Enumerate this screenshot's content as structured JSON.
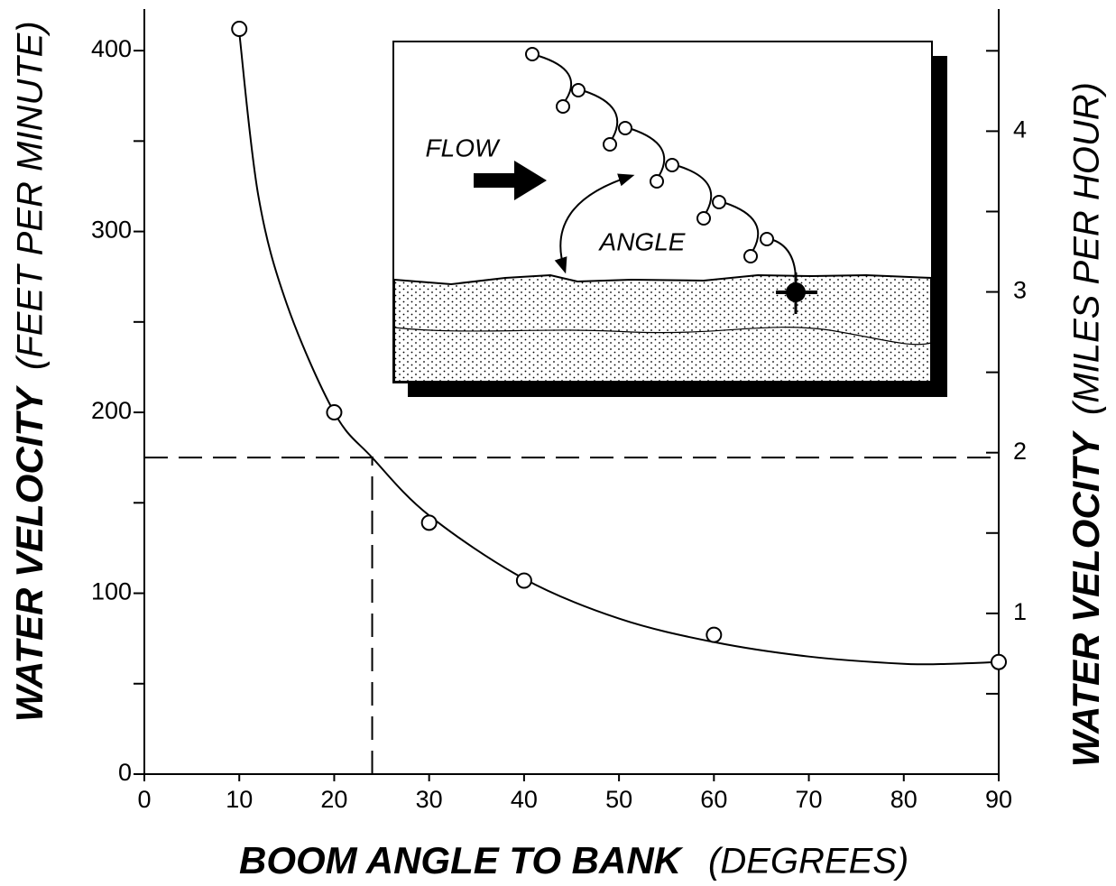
{
  "chart_data": {
    "type": "scatter",
    "x_label": "BOOM ANGLE TO BANK",
    "x_label_units": "(DEGREES)",
    "y_label": "WATER VELOCITY",
    "y_label_units": "(FEET PER MINUTE)",
    "y2_label": "WATER VELOCITY",
    "y2_label_units": "(MILES PER HOUR)",
    "x": [
      10,
      20,
      30,
      40,
      60,
      90
    ],
    "values": [
      412,
      200,
      139,
      107,
      77,
      62
    ],
    "curve": {
      "x": [
        10,
        12,
        15,
        20,
        24,
        30,
        40,
        50,
        60,
        70,
        80,
        85,
        90
      ],
      "values": [
        410,
        320,
        260,
        200,
        175,
        143,
        108,
        86,
        73,
        65,
        61,
        61,
        62
      ]
    },
    "reference": {
      "x": 24,
      "y": 175
    },
    "xlim": [
      0,
      90
    ],
    "xticks": [
      0,
      10,
      20,
      30,
      40,
      50,
      60,
      70,
      80,
      90
    ],
    "ylim": [
      0,
      423
    ],
    "yticks": [
      0,
      100,
      200,
      300,
      400
    ],
    "yminor_ticks": [
      50,
      150,
      250,
      350
    ],
    "y2lim": [
      0,
      4.76
    ],
    "y2ticks": [
      1,
      2,
      3,
      4
    ],
    "y2minor_ticks": [
      0.5,
      1.5,
      2.5,
      3.5,
      4.5
    ],
    "color": "#000000",
    "inset": {
      "flow_label": "FLOW",
      "angle_label": "ANGLE"
    }
  }
}
